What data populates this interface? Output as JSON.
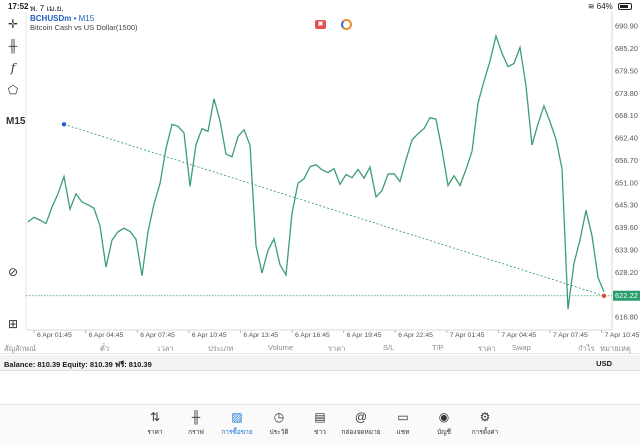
{
  "status_bar": {
    "time": "17:52",
    "date": "พ. 7 เม.ย.",
    "battery": "64%"
  },
  "chart": {
    "symbol": "BCHUSDm",
    "timeframe_suffix": "• M15",
    "description": "Bitcoin Cash vs US Dollar(1500)",
    "timeframe_label": "M15",
    "current_price": "622.22",
    "price_labels": [
      "690.90",
      "685.20",
      "679.50",
      "673.80",
      "668.10",
      "662.40",
      "656.70",
      "651.00",
      "645.30",
      "639.60",
      "633.90",
      "628.20",
      "622.22",
      "616.80"
    ],
    "time_labels": [
      "6 Apr 01:45",
      "6 Apr 04:45",
      "6 Apr 07:45",
      "6 Apr 10:45",
      "6 Apr 13:45",
      "6 Apr 16:45",
      "6 Apr 19:45",
      "6 Apr 22:45",
      "7 Apr 01:45",
      "7 Apr 04:45",
      "7 Apr 07:45",
      "7 Apr 10:45"
    ],
    "colors": {
      "line": "#3a9e73",
      "price_tag": "#2a9d6e",
      "trend": "#2e8f66"
    }
  },
  "chart_data": {
    "type": "line",
    "title": "",
    "ylim": [
      614,
      694
    ],
    "series": [
      {
        "values": [
          641.0,
          642.2,
          641.5,
          640.6,
          644.8,
          648.2,
          652.6,
          644.3,
          648.2,
          646.1,
          645.4,
          644.5,
          640.0,
          629.5,
          636.4,
          638.5,
          639.4,
          638.6,
          636.6,
          627.3,
          638.5,
          645.6,
          650.8,
          659.7,
          665.9,
          665.4,
          663.7,
          650.1,
          660.7,
          664.8,
          664.1,
          672.4,
          666.8,
          658.3,
          657.6,
          662.8,
          664.5,
          660.6,
          635.0,
          628.0,
          633.8,
          636.7,
          630.1,
          627.5,
          643.2,
          650.9,
          652.0,
          655.1,
          655.6,
          654.3,
          653.6,
          654.6,
          650.6,
          653.1,
          652.3,
          654.4,
          652.2,
          655.0,
          647.4,
          649.0,
          653.2,
          653.3,
          651.3,
          656.9,
          661.9,
          663.5,
          664.8,
          667.6,
          667.2,
          659.4,
          650.3,
          652.8,
          650.3,
          654.4,
          659.0,
          671.3,
          676.9,
          682.0,
          688.4,
          684.0,
          680.6,
          681.4,
          685.5,
          675.7,
          660.6,
          666.0,
          670.6,
          666.5,
          662.1,
          654.6,
          618.8,
          630.5,
          636.4,
          644.0,
          637.5,
          626.9,
          623.2
        ]
      }
    ],
    "trendline": {
      "from": [
        6,
        665.9
      ],
      "to": [
        96,
        622.2
      ]
    },
    "current_price_line": 622.22
  },
  "columns": [
    "สัญลักษณ์",
    "ตั๋ว",
    "เวลา",
    "ประเภท",
    "Volume",
    "ราคา",
    "S/L",
    "T/P",
    "ราคา",
    "Swap",
    "กำไร",
    "หมายเหตุ"
  ],
  "balance": {
    "text": "Balance: 810.39 Equity: 810.39 ฟรี: 810.39",
    "currency": "USD"
  },
  "tabs": [
    {
      "label": "ราคา",
      "icon": "quotes-icon"
    },
    {
      "label": "กราฟ",
      "icon": "chart-icon"
    },
    {
      "label": "การซื้อขาย",
      "icon": "trade-icon"
    },
    {
      "label": "ประวัติ",
      "icon": "history-icon"
    },
    {
      "label": "ข่าว",
      "icon": "news-icon"
    },
    {
      "label": "กล่องจดหมาย",
      "icon": "mailbox-icon"
    },
    {
      "label": "แชท",
      "icon": "chat-icon"
    },
    {
      "label": "บัญชี",
      "icon": "account-icon"
    },
    {
      "label": "การตั้งค่า",
      "icon": "settings-icon"
    }
  ]
}
